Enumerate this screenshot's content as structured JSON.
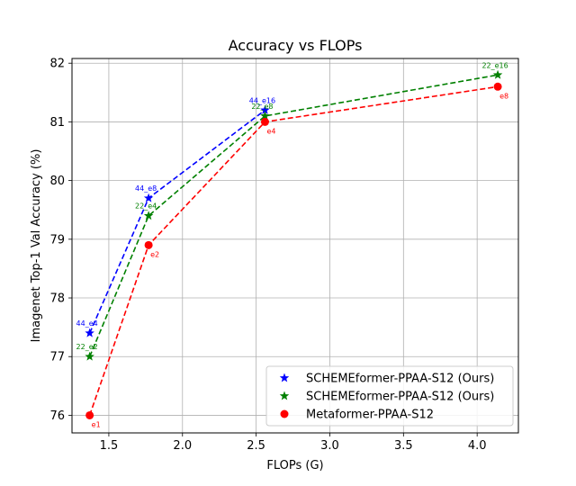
{
  "chart_data": {
    "type": "line",
    "title": "Accuracy vs FLOPs",
    "xlabel": "FLOPs (G)",
    "ylabel": "Imagenet Top-1 Val Accuracy (%)",
    "xlim": [
      1.25,
      4.28
    ],
    "ylim": [
      75.7,
      82.08
    ],
    "xticks": [
      1.5,
      2.0,
      2.5,
      3.0,
      3.5,
      4.0
    ],
    "xtick_labels": [
      "1.5",
      "2.0",
      "2.5",
      "3.0",
      "3.5",
      "4.0"
    ],
    "yticks": [
      76,
      77,
      78,
      79,
      80,
      81,
      82
    ],
    "ytick_labels": [
      "76",
      "77",
      "78",
      "79",
      "80",
      "81",
      "82"
    ],
    "grid": true,
    "legend_position": "lower-right",
    "series": [
      {
        "name": "SCHEMEformer-PPAA-S12 (Ours)",
        "color": "#0000ff",
        "marker": "star",
        "x": [
          1.37,
          1.77,
          2.56
        ],
        "y": [
          77.4,
          79.7,
          81.2
        ],
        "labels": [
          "44_e4",
          "44_e8",
          "44_e16"
        ]
      },
      {
        "name": "SCHEMEformer-PPAA-S12 (Ours)",
        "color": "#008000",
        "marker": "star",
        "x": [
          1.37,
          1.77,
          2.56,
          4.14
        ],
        "y": [
          77.0,
          79.4,
          81.1,
          81.8
        ],
        "labels": [
          "22_e2",
          "22_e4",
          "22_e8",
          "22_e16"
        ]
      },
      {
        "name": "Metaformer-PPAA-S12",
        "color": "#ff0000",
        "marker": "circle",
        "x": [
          1.37,
          1.77,
          2.56,
          4.14
        ],
        "y": [
          76.0,
          78.9,
          81.0,
          81.6
        ],
        "labels": [
          "e1",
          "e2",
          "e4",
          "e8"
        ]
      }
    ]
  }
}
